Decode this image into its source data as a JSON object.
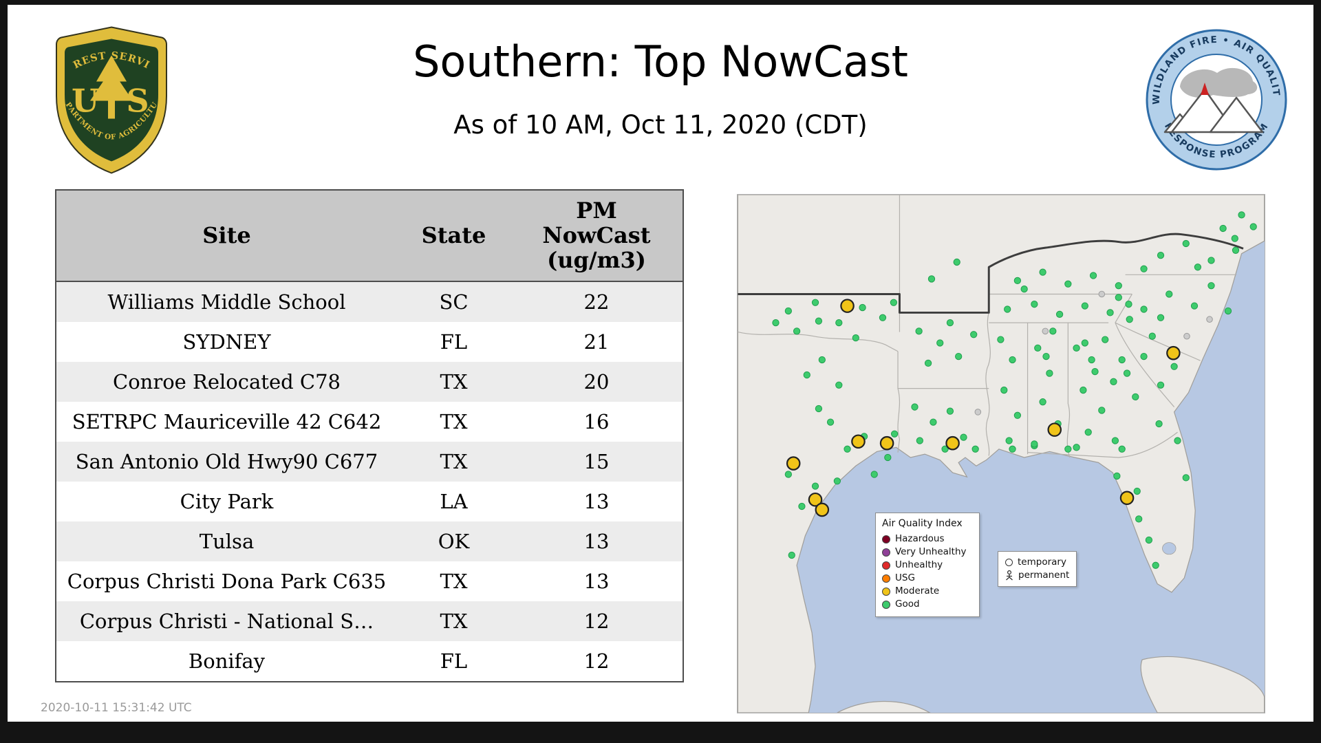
{
  "header": {
    "title": "Southern: Top NowCast",
    "subtitle": "As of 10 AM, Oct 11, 2020 (CDT)"
  },
  "logos": {
    "usfs": {
      "top_arc": "FOREST SERVICE",
      "left_letter": "U",
      "right_letter": "S",
      "bottom_arc": "DEPARTMENT OF AGRICULTURE"
    },
    "program": {
      "top_arc": "WILDLAND FIRE • AIR QUALITY",
      "bottom_arc": "RESPONSE PROGRAM"
    }
  },
  "table": {
    "columns": [
      "Site",
      "State",
      "PM\nNowCast\n(ug/m3)"
    ],
    "rows": [
      [
        "Williams Middle School",
        "SC",
        "22"
      ],
      [
        "SYDNEY",
        "FL",
        "21"
      ],
      [
        "Conroe Relocated C78",
        "TX",
        "20"
      ],
      [
        "SETRPC Mauriceville 42 C642",
        "TX",
        "16"
      ],
      [
        "San Antonio Old Hwy90 C677",
        "TX",
        "15"
      ],
      [
        "City Park",
        "LA",
        "13"
      ],
      [
        "Tulsa",
        "OK",
        "13"
      ],
      [
        "Corpus Christi Dona Park C635",
        "TX",
        "13"
      ],
      [
        "Corpus Christi - National S…",
        "TX",
        "12"
      ],
      [
        "Bonifay",
        "FL",
        "12"
      ]
    ]
  },
  "map": {
    "legend": {
      "title": "Air Quality Index",
      "entries": [
        {
          "label": "Hazardous",
          "color": "#7e0023"
        },
        {
          "label": "Very Unhealthy",
          "color": "#8f3f97"
        },
        {
          "label": "Unhealthy",
          "color": "#e02a2a"
        },
        {
          "label": "USG",
          "color": "#ff7e00"
        },
        {
          "label": "Moderate",
          "color": "#f0c419"
        },
        {
          "label": "Good",
          "color": "#3ecb6d"
        }
      ]
    },
    "marker_legend": [
      {
        "label": "temporary"
      },
      {
        "label": "permanent"
      }
    ],
    "marker_style": {
      "good_fill": "#3ecb6d",
      "good_stroke": "#1f9e4d",
      "moderate_fill": "#f0c419",
      "moderate_stroke": "#222222",
      "inactive_fill": "#cccccc",
      "inactive_stroke": "#9a9a9a"
    },
    "markers": {
      "good": [
        [
          70,
          162
        ],
        [
          96,
          150
        ],
        [
          140,
          170
        ],
        [
          100,
          196
        ],
        [
          82,
          214
        ],
        [
          120,
          226
        ],
        [
          96,
          254
        ],
        [
          110,
          270
        ],
        [
          130,
          302
        ],
        [
          150,
          287
        ],
        [
          92,
          346
        ],
        [
          118,
          340
        ],
        [
          162,
          332
        ],
        [
          178,
          312
        ],
        [
          186,
          284
        ],
        [
          60,
          332
        ],
        [
          76,
          370
        ],
        [
          64,
          428
        ],
        [
          60,
          138
        ],
        [
          92,
          128
        ],
        [
          120,
          152
        ],
        [
          148,
          134
        ],
        [
          172,
          146
        ],
        [
          45,
          152
        ],
        [
          185,
          128
        ],
        [
          215,
          162
        ],
        [
          240,
          176
        ],
        [
          226,
          200
        ],
        [
          262,
          192
        ],
        [
          280,
          166
        ],
        [
          252,
          152
        ],
        [
          210,
          252
        ],
        [
          232,
          270
        ],
        [
          252,
          257
        ],
        [
          216,
          292
        ],
        [
          246,
          302
        ],
        [
          268,
          288
        ],
        [
          282,
          302
        ],
        [
          312,
          172
        ],
        [
          326,
          196
        ],
        [
          316,
          232
        ],
        [
          332,
          262
        ],
        [
          322,
          292
        ],
        [
          356,
          182
        ],
        [
          370,
          212
        ],
        [
          362,
          246
        ],
        [
          380,
          272
        ],
        [
          352,
          298
        ],
        [
          366,
          192
        ],
        [
          374,
          162
        ],
        [
          320,
          136
        ],
        [
          352,
          130
        ],
        [
          382,
          142
        ],
        [
          412,
          132
        ],
        [
          442,
          140
        ],
        [
          464,
          130
        ],
        [
          332,
          102
        ],
        [
          362,
          92
        ],
        [
          392,
          106
        ],
        [
          422,
          96
        ],
        [
          452,
          108
        ],
        [
          340,
          112
        ],
        [
          402,
          182
        ],
        [
          412,
          176
        ],
        [
          420,
          196
        ],
        [
          410,
          232
        ],
        [
          432,
          256
        ],
        [
          446,
          222
        ],
        [
          416,
          282
        ],
        [
          436,
          172
        ],
        [
          456,
          196
        ],
        [
          402,
          300
        ],
        [
          448,
          292
        ],
        [
          424,
          210
        ],
        [
          462,
          212
        ],
        [
          482,
          192
        ],
        [
          502,
          226
        ],
        [
          472,
          240
        ],
        [
          518,
          204
        ],
        [
          492,
          168
        ],
        [
          452,
          122
        ],
        [
          482,
          136
        ],
        [
          512,
          118
        ],
        [
          542,
          132
        ],
        [
          562,
          108
        ],
        [
          582,
          138
        ],
        [
          502,
          146
        ],
        [
          465,
          148
        ],
        [
          502,
          72
        ],
        [
          532,
          58
        ],
        [
          562,
          78
        ],
        [
          590,
          52
        ],
        [
          591,
          66
        ],
        [
          482,
          88
        ],
        [
          546,
          86
        ],
        [
          612,
          38
        ],
        [
          598,
          24
        ],
        [
          576,
          40
        ],
        [
          392,
          302
        ],
        [
          450,
          334
        ],
        [
          474,
          352
        ],
        [
          476,
          385
        ],
        [
          488,
          410
        ],
        [
          496,
          440
        ],
        [
          456,
          302
        ],
        [
          500,
          272
        ],
        [
          522,
          292
        ],
        [
          532,
          336
        ],
        [
          352,
          296
        ],
        [
          326,
          302
        ],
        [
          230,
          100
        ],
        [
          260,
          80
        ]
      ],
      "moderate": [
        [
          130,
          132
        ],
        [
          143,
          293
        ],
        [
          177,
          295
        ],
        [
          66,
          319
        ],
        [
          92,
          362
        ],
        [
          100,
          374
        ],
        [
          255,
          295
        ],
        [
          376,
          279
        ],
        [
          462,
          360
        ],
        [
          517,
          188
        ]
      ],
      "inactive": [
        [
          365,
          162
        ],
        [
          533,
          168
        ],
        [
          285,
          258
        ],
        [
          432,
          118
        ],
        [
          560,
          148
        ]
      ]
    }
  },
  "footer": {
    "timestamp": "2020-10-11 15:31:42 UTC"
  }
}
